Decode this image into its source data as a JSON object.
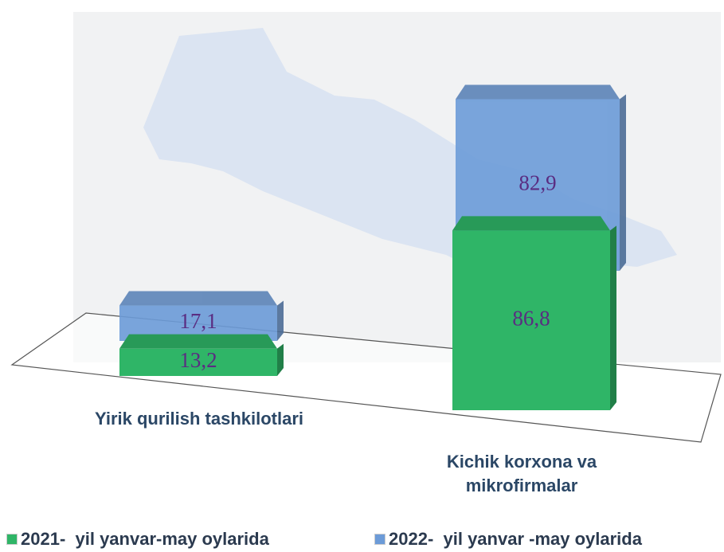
{
  "chart_data": {
    "type": "bar3d",
    "categories": [
      "Yirik qurilish tashkilotlari",
      "Kichik korxona va mikrofirmalar"
    ],
    "series": [
      {
        "name": "2021-  yil yanvar-may oylarida",
        "color": "#2fb567",
        "values": [
          13.2,
          86.8
        ],
        "value_labels": [
          "13,2",
          "86,8"
        ]
      },
      {
        "name": "2022-  yil yanvar -may oylarida",
        "color": "#6c9bd8",
        "values": [
          17.1,
          82.9
        ],
        "value_labels": [
          "17,1",
          "82,9"
        ]
      }
    ]
  }
}
